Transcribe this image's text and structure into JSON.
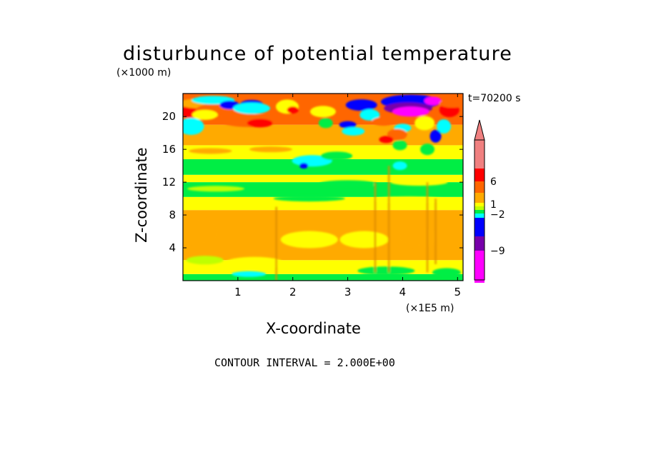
{
  "chart_data": {
    "type": "heatmap",
    "title": "disturbunce of potential temperature",
    "time_label": "t=70200 s",
    "xlabel": "X-coordinate",
    "x_unit": "(×1E5 m)",
    "ylabel": "Z-coordinate",
    "y_unit": "(×1000 m)",
    "xlim": [
      0,
      5.1
    ],
    "ylim": [
      0,
      22.8
    ],
    "x_ticks": [
      1,
      2,
      3,
      4,
      5
    ],
    "y_ticks": [
      4,
      8,
      12,
      16,
      20
    ],
    "contour_interval_label": "CONTOUR INTERVAL = 2.000E+00",
    "colorbar": {
      "tick_labels": [
        "6",
        "1",
        "−2",
        "−9"
      ],
      "levels_top_to_bottom": [
        {
          "color": "#f08080",
          "from": 8
        },
        {
          "color": "#ff0000",
          "from": 6,
          "to": 8
        },
        {
          "color": "#ff6600",
          "from": 4,
          "to": 6
        },
        {
          "color": "#ffaa00",
          "from": 2,
          "to": 4
        },
        {
          "color": "#ffff00",
          "from": 1,
          "to": 2
        },
        {
          "color": "#bfff00",
          "from": 0,
          "to": 1
        },
        {
          "color": "#00ee44",
          "from": -1,
          "to": 0
        },
        {
          "color": "#00ffff",
          "from": -2,
          "to": -1
        },
        {
          "color": "#0000ff",
          "from": -5,
          "to": -2
        },
        {
          "color": "#7700aa",
          "from": -9,
          "to": -5
        },
        {
          "color": "#ff00ff",
          "to": -9
        }
      ]
    },
    "field_bands_bottom_to_top": [
      {
        "z": [
          0,
          0.8
        ],
        "level": "#00ee44"
      },
      {
        "z": [
          0.8,
          2.5
        ],
        "level": "#ffff00"
      },
      {
        "z": [
          2.5,
          8.6
        ],
        "level": "#ffaa00"
      },
      {
        "z": [
          8.6,
          10.2
        ],
        "level": "#ffff00"
      },
      {
        "z": [
          10.2,
          12.0
        ],
        "level": "#00ee44"
      },
      {
        "z": [
          12.0,
          12.9
        ],
        "level": "#ffff00"
      },
      {
        "z": [
          12.9,
          14.8
        ],
        "level": "#00ee44"
      },
      {
        "z": [
          14.8,
          16.5
        ],
        "level": "#ffff00"
      },
      {
        "z": [
          16.5,
          19.0
        ],
        "level": "#ffaa00"
      },
      {
        "z": [
          19.0,
          22.8
        ],
        "level": "#ff6600"
      }
    ]
  }
}
